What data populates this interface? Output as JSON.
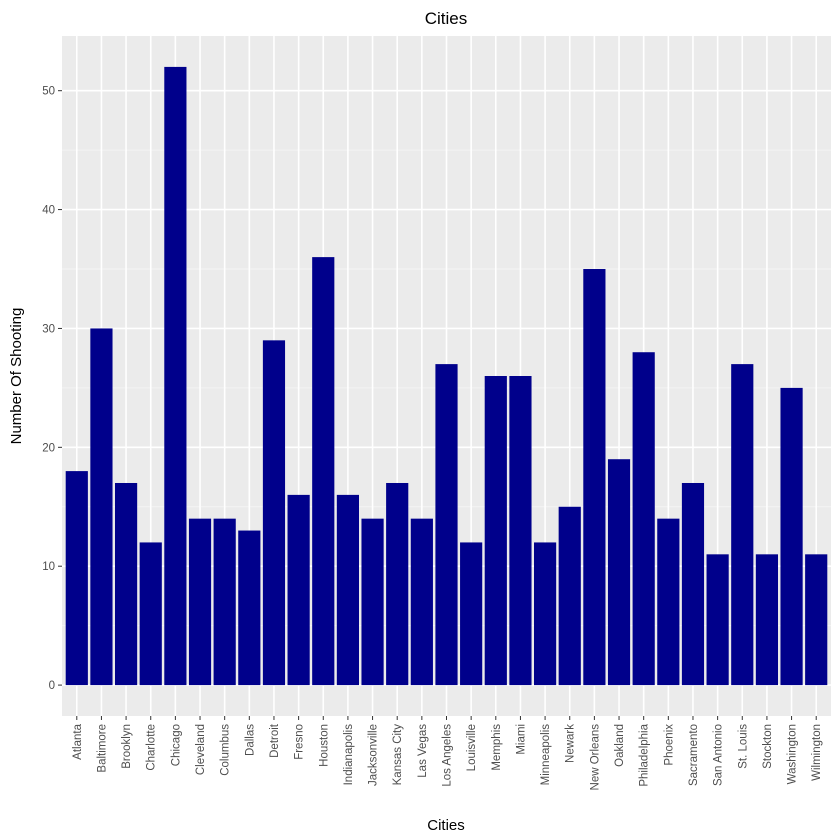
{
  "chart_data": {
    "type": "bar",
    "title": "Cities",
    "xlabel": "Cities",
    "ylabel": "Number Of Shooting",
    "categories": [
      "Atlanta",
      "Baltimore",
      "Brooklyn",
      "Charlotte",
      "Chicago",
      "Cleveland",
      "Columbus",
      "Dallas",
      "Detroit",
      "Fresno",
      "Houston",
      "Indianapolis",
      "Jacksonville",
      "Kansas City",
      "Las Vegas",
      "Los Angeles",
      "Louisville",
      "Memphis",
      "Miami",
      "Minneapolis",
      "Newark",
      "New Orleans",
      "Oakland",
      "Philadelphia",
      "Phoenix",
      "Sacramento",
      "San Antonio",
      "St. Louis",
      "Stockton",
      "Washington",
      "Wilmington"
    ],
    "values": [
      18,
      30,
      17,
      12,
      52,
      14,
      14,
      13,
      29,
      16,
      36,
      16,
      14,
      17,
      14,
      27,
      12,
      26,
      26,
      12,
      15,
      35,
      19,
      28,
      14,
      17,
      11,
      27,
      11,
      25,
      11
    ],
    "yticks": [
      0,
      10,
      20,
      30,
      40,
      50
    ],
    "ylim": [
      -2.6,
      54.6
    ],
    "grid": true,
    "colors": {
      "bar": "#00008B",
      "panel": "#EBEBEB",
      "grid_major": "#FFFFFF",
      "grid_minor": "#F4F4F4"
    }
  }
}
